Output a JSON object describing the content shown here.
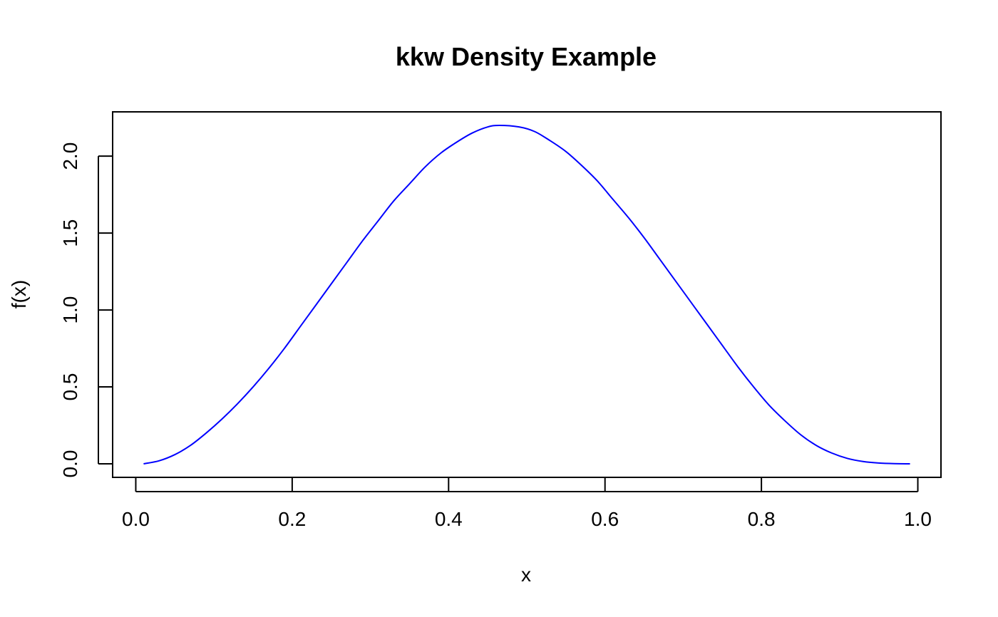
{
  "chart_data": {
    "type": "line",
    "title": "kkw Density Example",
    "xlabel": "x",
    "ylabel": "f(x)",
    "xlim": [
      -0.0296,
      1.0296
    ],
    "ylim": [
      -0.088,
      2.288
    ],
    "x_ticks": [
      0.0,
      0.2,
      0.4,
      0.6,
      0.8,
      1.0
    ],
    "x_tick_labels": [
      "0.0",
      "0.2",
      "0.4",
      "0.6",
      "0.8",
      "1.0"
    ],
    "y_ticks": [
      0.0,
      0.5,
      1.0,
      1.5,
      2.0
    ],
    "y_tick_labels": [
      "0.0",
      "0.5",
      "1.0",
      "1.5",
      "2.0"
    ],
    "grid": false,
    "legend": "none",
    "series": [
      {
        "color": "#0000ff",
        "x": [
          0.01,
          0.03,
          0.05,
          0.07,
          0.09,
          0.11,
          0.13,
          0.15,
          0.17,
          0.19,
          0.21,
          0.23,
          0.25,
          0.27,
          0.29,
          0.31,
          0.33,
          0.35,
          0.37,
          0.39,
          0.41,
          0.43,
          0.45,
          0.465,
          0.49,
          0.51,
          0.53,
          0.55,
          0.57,
          0.59,
          0.61,
          0.63,
          0.65,
          0.67,
          0.69,
          0.71,
          0.73,
          0.75,
          0.77,
          0.79,
          0.81,
          0.83,
          0.85,
          0.87,
          0.89,
          0.91,
          0.93,
          0.95,
          0.97,
          0.99
        ],
        "y": [
          0.0,
          0.02,
          0.06,
          0.12,
          0.2,
          0.29,
          0.39,
          0.5,
          0.62,
          0.75,
          0.89,
          1.03,
          1.17,
          1.31,
          1.45,
          1.58,
          1.71,
          1.82,
          1.93,
          2.02,
          2.09,
          2.15,
          2.19,
          2.2,
          2.19,
          2.16,
          2.1,
          2.03,
          1.94,
          1.84,
          1.72,
          1.6,
          1.47,
          1.33,
          1.19,
          1.05,
          0.91,
          0.77,
          0.63,
          0.5,
          0.38,
          0.28,
          0.19,
          0.12,
          0.07,
          0.035,
          0.015,
          0.005,
          0.001,
          0.0
        ]
      }
    ]
  }
}
